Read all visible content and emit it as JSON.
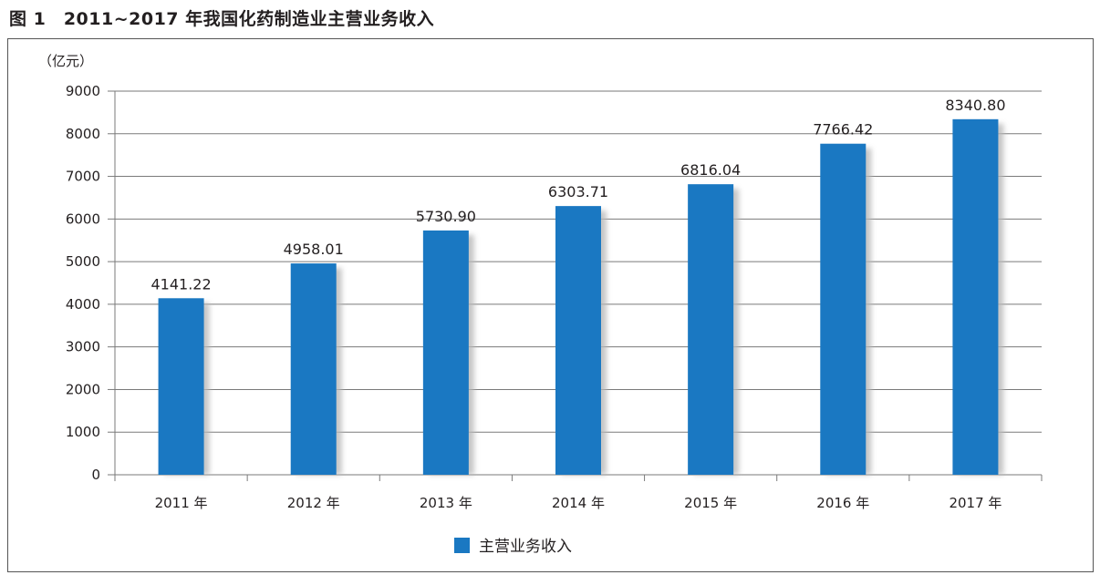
{
  "figure": {
    "title": "图 1　2011~2017 年我国化药制造业主营业务收入"
  },
  "colors": {
    "bar": "#1a78c2",
    "shadow": "#b8b8b8",
    "grid": "#7a7a7a"
  },
  "chart_data": {
    "type": "bar",
    "title": "",
    "unit_label": "（亿元）",
    "categories": [
      "2011 年",
      "2012 年",
      "2013 年",
      "2014 年",
      "2015 年",
      "2016 年",
      "2017 年"
    ],
    "series": [
      {
        "name": "主营业务收入",
        "values": [
          4141.22,
          4958.01,
          5730.9,
          6303.71,
          6816.04,
          7766.42,
          8340.8
        ],
        "value_labels": [
          "4141.22",
          "4958.01",
          "5730.90",
          "6303.71",
          "6816.04",
          "7766.42",
          "8340.80"
        ]
      }
    ],
    "ylim": [
      0,
      9000
    ],
    "yticks": [
      0,
      1000,
      2000,
      3000,
      4000,
      5000,
      6000,
      7000,
      8000,
      9000
    ],
    "grid": true,
    "legend": "bottom-center"
  }
}
